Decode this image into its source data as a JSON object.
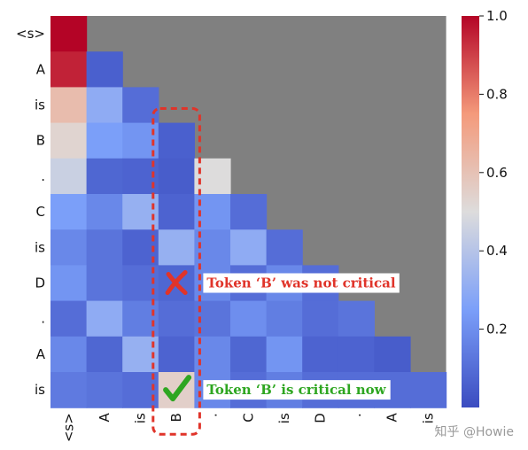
{
  "chart_data": {
    "type": "heatmap",
    "title": "",
    "xlabel": "",
    "ylabel": "",
    "tokens": [
      "<s>",
      "A",
      "is",
      "B",
      ".",
      "C",
      "is",
      "D",
      ".",
      "A",
      "is"
    ],
    "masked_color": "#808080",
    "values": [
      [
        1.0,
        null,
        null,
        null,
        null,
        null,
        null,
        null,
        null,
        null,
        null
      ],
      [
        0.95,
        0.06,
        null,
        null,
        null,
        null,
        null,
        null,
        null,
        null,
        null
      ],
      [
        0.62,
        0.3,
        0.1,
        null,
        null,
        null,
        null,
        null,
        null,
        null,
        null
      ],
      [
        0.53,
        0.25,
        0.22,
        0.06,
        null,
        null,
        null,
        null,
        null,
        null,
        null
      ],
      [
        0.45,
        0.08,
        0.07,
        0.05,
        0.5,
        null,
        null,
        null,
        null,
        null,
        null
      ],
      [
        0.25,
        0.18,
        0.32,
        0.07,
        0.22,
        0.1,
        null,
        null,
        null,
        null,
        null
      ],
      [
        0.18,
        0.12,
        0.07,
        0.32,
        0.18,
        0.3,
        0.1,
        null,
        null,
        null,
        null
      ],
      [
        0.22,
        0.12,
        0.1,
        0.08,
        0.18,
        0.1,
        0.18,
        0.1,
        null,
        null,
        null
      ],
      [
        0.1,
        0.3,
        0.15,
        0.1,
        0.12,
        0.2,
        0.15,
        0.1,
        0.12,
        null,
        null
      ],
      [
        0.18,
        0.08,
        0.32,
        0.07,
        0.18,
        0.08,
        0.22,
        0.07,
        0.07,
        0.05,
        null
      ],
      [
        0.14,
        0.12,
        0.1,
        0.55,
        0.18,
        0.1,
        0.15,
        0.1,
        0.1,
        0.1,
        0.1
      ]
    ],
    "colorbar": {
      "vmin": 0.0,
      "vmax": 1.0,
      "ticks": [
        0.2,
        0.4,
        0.6,
        0.8,
        1.0
      ],
      "tick_labels": [
        "0.2",
        "0.4",
        "0.6",
        "0.8",
        "1.0"
      ]
    },
    "highlight": {
      "column": "B",
      "style": "dashed",
      "color": "#e0342a"
    },
    "annotations": [
      {
        "row": 7,
        "col": 3,
        "mark": "cross",
        "mark_color": "#e0342a",
        "text": "Token ‘B’ was not critical",
        "text_color": "#e0342a"
      },
      {
        "row": 10,
        "col": 3,
        "mark": "check",
        "mark_color": "#2ea621",
        "text": "Token ‘B’ is critical now",
        "text_color": "#2ea621"
      }
    ]
  },
  "watermark": "知乎 @Howie"
}
